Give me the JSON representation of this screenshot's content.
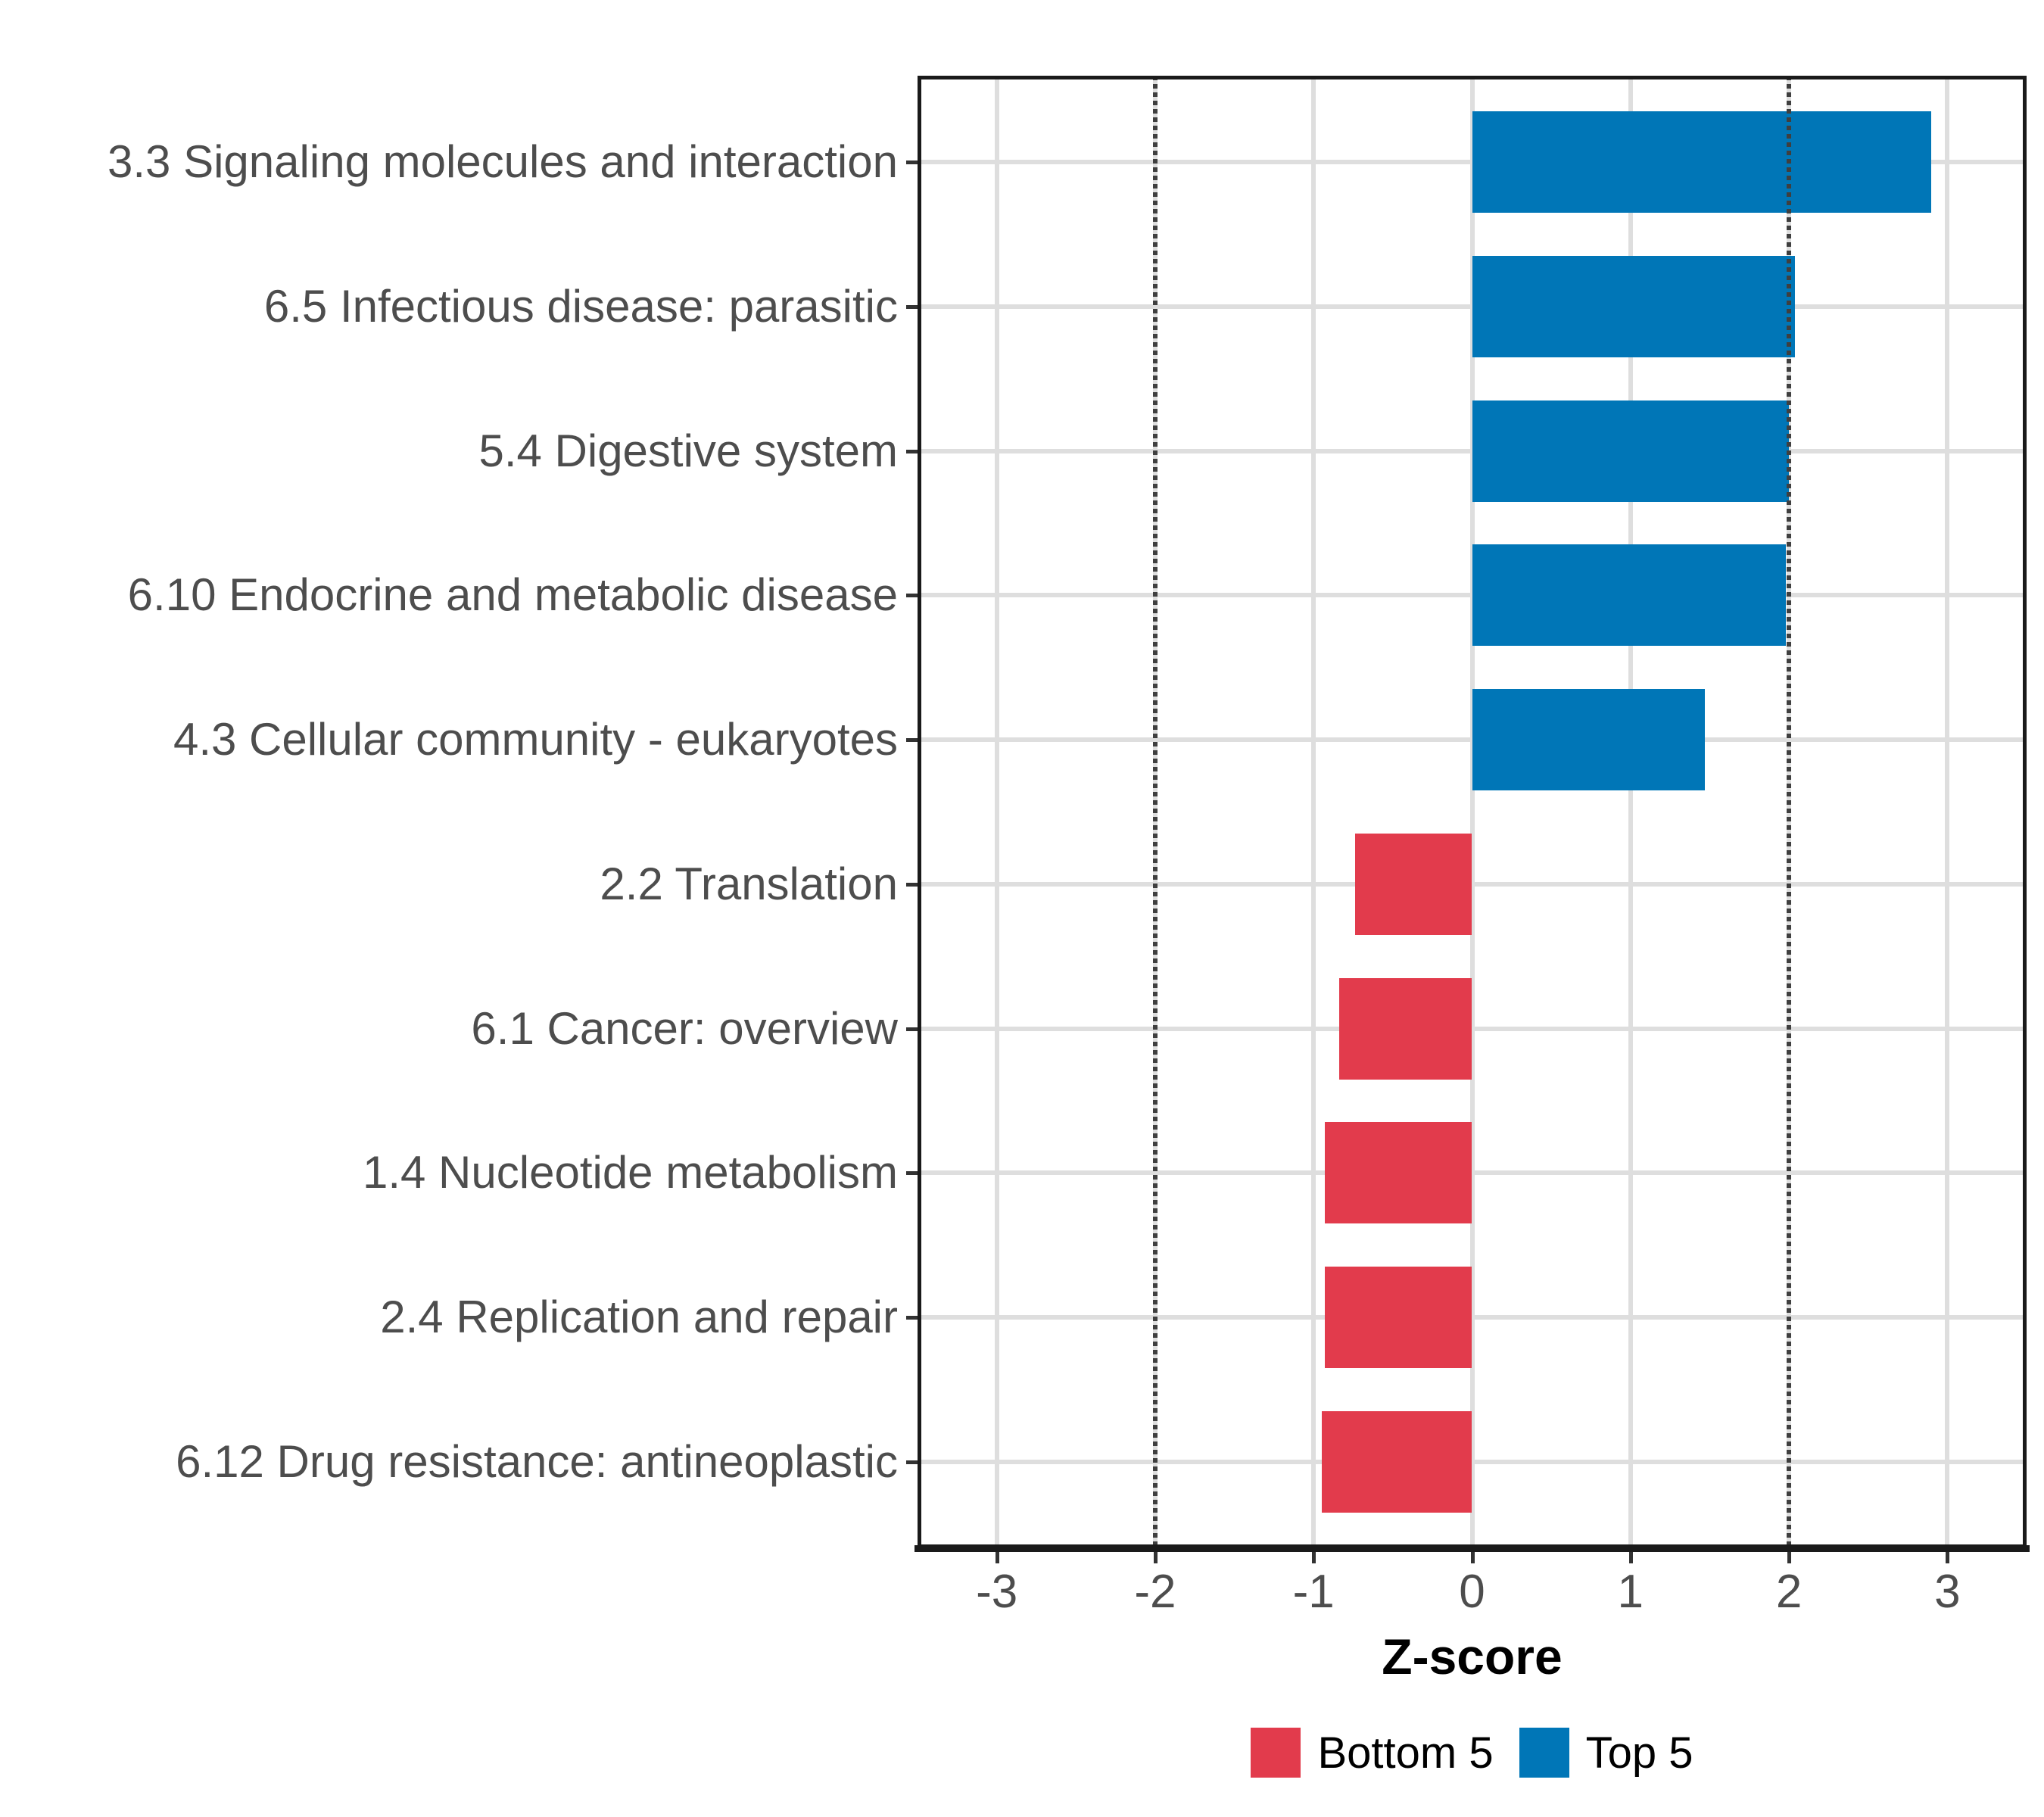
{
  "chart_data": {
    "type": "bar",
    "orientation": "horizontal",
    "xlabel": "Z-score",
    "categories": [
      "3.3 Signaling molecules and interaction",
      "6.5 Infectious disease: parasitic",
      "5.4 Digestive system",
      "6.10 Endocrine and metabolic disease",
      "4.3 Cellular community - eukaryotes",
      "2.2 Translation",
      "6.1 Cancer: overview",
      "1.4 Nucleotide metabolism",
      "2.4 Replication and repair",
      "6.12 Drug resistance: antineoplastic"
    ],
    "values": [
      2.9,
      2.04,
      2.0,
      1.98,
      1.47,
      -0.74,
      -0.84,
      -0.93,
      -0.93,
      -0.95
    ],
    "groups": [
      "Top 5",
      "Top 5",
      "Top 5",
      "Top 5",
      "Top 5",
      "Bottom 5",
      "Bottom 5",
      "Bottom 5",
      "Bottom 5",
      "Bottom 5"
    ],
    "legend": [
      {
        "label": "Bottom 5",
        "color": "#e23b4c"
      },
      {
        "label": "Top 5",
        "color": "#0076b7"
      }
    ],
    "legend_position": "bottom",
    "xlim": [
      -3.5,
      3.5
    ],
    "xticks": [
      "-3",
      "-2",
      "-1",
      "0",
      "1",
      "2",
      "3"
    ],
    "xtick_values": [
      -3,
      -2,
      -1,
      0,
      1,
      2,
      3
    ],
    "reference_lines": [
      -2,
      2
    ],
    "grid": true,
    "colors": {
      "top5": "#0076b7",
      "bottom5": "#e23b4c",
      "gridline": "#dedede",
      "reference_line": "#3f3f3f",
      "axis_text": "#4d4d4d",
      "panel_border": "#1a1a1a"
    }
  }
}
